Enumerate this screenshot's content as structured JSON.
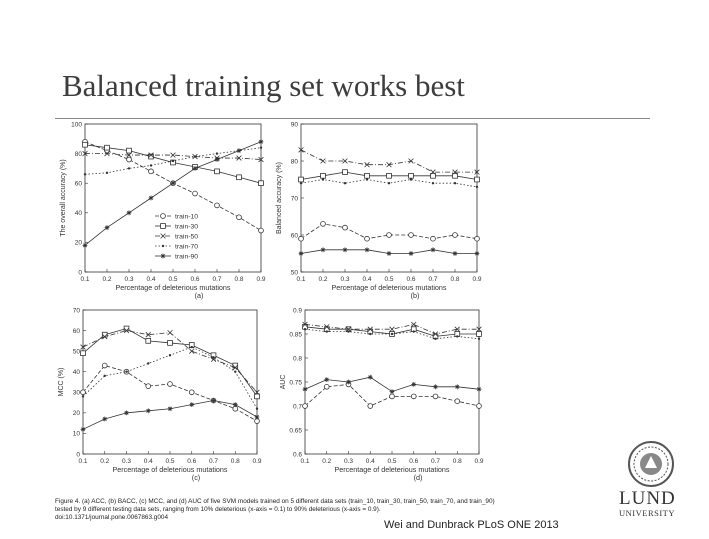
{
  "slide": {
    "title": "Balanced training set works best",
    "footer": "Wei and Dunbrack PLoS ONE 2013",
    "logo": {
      "word": "LUND",
      "sub": "UNIVERSITY"
    }
  },
  "caption": {
    "lead": "Figure 4. (a) ACC, (b) BACC, (c) MCC, and (d) AUC of five SVM models trained on 5 different data sets (train_10, train_30, train_50, train_70, and train_90) tested by 9 different testing data sets, ranging from 10% deleterious (x-axis = 0.1) to 90% deleterious (x-axis = 0.9).",
    "doi": "doi:10.1371/journal.pone.0067863.g004"
  },
  "colors": {
    "ink": "#333333",
    "grid": "#bbbbbb"
  },
  "chart_data": [
    {
      "type": "line",
      "panel_label": "(a)",
      "xlabel": "Percentage of deleterious mutations",
      "ylabel": "The overall accuracy (%)",
      "x": [
        0.1,
        0.2,
        0.3,
        0.4,
        0.5,
        0.6,
        0.7,
        0.8,
        0.9
      ],
      "x_ticks": [
        "0.1",
        "0.2",
        "0.3",
        "0.4",
        "0.5",
        "0.6",
        "0.7",
        "0.8",
        "0.9"
      ],
      "xlim": [
        0.1,
        0.9
      ],
      "ylim": [
        0,
        100
      ],
      "y_ticks": [
        0,
        20,
        40,
        60,
        80,
        100
      ],
      "grid": false,
      "legend": "bottom-right",
      "series": [
        {
          "name": "train-10",
          "marker": "circle",
          "values": [
            88,
            82,
            76,
            68,
            60,
            53,
            45,
            37,
            28
          ]
        },
        {
          "name": "train-30",
          "marker": "square",
          "values": [
            86,
            84,
            82,
            78,
            74,
            71,
            68,
            64,
            60
          ]
        },
        {
          "name": "train-50",
          "marker": "x",
          "values": [
            80,
            80,
            79,
            79,
            79,
            78,
            77,
            77,
            76
          ]
        },
        {
          "name": "train-70",
          "marker": "dot",
          "values": [
            66,
            67,
            70,
            72,
            75,
            78,
            80,
            82,
            84
          ]
        },
        {
          "name": "train-90",
          "marker": "star",
          "values": [
            18,
            30,
            40,
            50,
            60,
            70,
            76,
            82,
            88
          ]
        }
      ]
    },
    {
      "type": "line",
      "panel_label": "(b)",
      "xlabel": "Percentage of deleterious mutations",
      "ylabel": "Balanced accuracy (%)",
      "x": [
        0.1,
        0.2,
        0.3,
        0.4,
        0.5,
        0.6,
        0.7,
        0.8,
        0.9
      ],
      "x_ticks": [
        "0.1",
        "0.2",
        "0.3",
        "0.4",
        "0.5",
        "0.6",
        "0.7",
        "0.8",
        "0.9"
      ],
      "xlim": [
        0.1,
        0.9
      ],
      "ylim": [
        50,
        90
      ],
      "y_ticks": [
        50,
        60,
        70,
        80,
        90
      ],
      "grid": false,
      "series": [
        {
          "name": "train-10",
          "marker": "circle",
          "values": [
            59,
            63,
            62,
            59,
            60,
            60,
            59,
            60,
            59
          ]
        },
        {
          "name": "train-30",
          "marker": "square",
          "values": [
            75,
            76,
            77,
            76,
            76,
            76,
            76,
            76,
            75
          ]
        },
        {
          "name": "train-50",
          "marker": "x",
          "values": [
            83,
            80,
            80,
            79,
            79,
            80,
            77,
            77,
            77
          ]
        },
        {
          "name": "train-70",
          "marker": "dot",
          "values": [
            74,
            75,
            74,
            75,
            74,
            75,
            74,
            74,
            73
          ]
        },
        {
          "name": "train-90",
          "marker": "star",
          "values": [
            55,
            56,
            56,
            56,
            55,
            55,
            56,
            55,
            55
          ]
        }
      ]
    },
    {
      "type": "line",
      "panel_label": "(c)",
      "xlabel": "Percentage of deleterious mutations",
      "ylabel": "MCC (%)",
      "x": [
        0.1,
        0.2,
        0.3,
        0.4,
        0.5,
        0.6,
        0.7,
        0.8,
        0.9
      ],
      "x_ticks": [
        "0.1",
        "0.2",
        "0.3",
        "0.4",
        "0.5",
        "0.6",
        "0.7",
        "0.8",
        "0.9"
      ],
      "xlim": [
        0.1,
        0.9
      ],
      "ylim": [
        0,
        70
      ],
      "y_ticks": [
        0,
        10,
        20,
        30,
        40,
        50,
        60,
        70
      ],
      "grid": false,
      "series": [
        {
          "name": "train-10",
          "marker": "circle",
          "values": [
            30,
            43,
            40,
            33,
            34,
            30,
            26,
            22,
            16
          ]
        },
        {
          "name": "train-30",
          "marker": "square",
          "values": [
            49,
            58,
            61,
            55,
            54,
            53,
            48,
            43,
            28
          ]
        },
        {
          "name": "train-50",
          "marker": "x",
          "values": [
            52,
            57,
            60,
            58,
            59,
            50,
            46,
            42,
            30
          ]
        },
        {
          "name": "train-70",
          "marker": "dot",
          "values": [
            28,
            38,
            40,
            44,
            48,
            52,
            47,
            40,
            22
          ]
        },
        {
          "name": "train-90",
          "marker": "star",
          "values": [
            12,
            17,
            20,
            21,
            22,
            24,
            26,
            24,
            18
          ]
        }
      ]
    },
    {
      "type": "line",
      "panel_label": "(d)",
      "xlabel": "Percentage of deleterious mutations",
      "ylabel": "AUC",
      "x": [
        0.1,
        0.2,
        0.3,
        0.4,
        0.5,
        0.6,
        0.7,
        0.8,
        0.9
      ],
      "x_ticks": [
        "0.1",
        "0.2",
        "0.3",
        "0.4",
        "0.5",
        "0.6",
        "0.7",
        "0.8",
        "0.9"
      ],
      "xlim": [
        0.1,
        0.9
      ],
      "ylim": [
        0.6,
        0.9
      ],
      "y_ticks": [
        0.6,
        0.65,
        0.7,
        0.75,
        0.8,
        0.85,
        0.9
      ],
      "grid": false,
      "series": [
        {
          "name": "train-10",
          "marker": "circle",
          "values": [
            0.7,
            0.74,
            0.745,
            0.7,
            0.72,
            0.72,
            0.72,
            0.71,
            0.7
          ]
        },
        {
          "name": "train-30",
          "marker": "square",
          "values": [
            0.865,
            0.86,
            0.86,
            0.855,
            0.85,
            0.86,
            0.845,
            0.85,
            0.85
          ]
        },
        {
          "name": "train-50",
          "marker": "x",
          "values": [
            0.87,
            0.865,
            0.86,
            0.86,
            0.86,
            0.87,
            0.85,
            0.86,
            0.86
          ]
        },
        {
          "name": "train-70",
          "marker": "dot",
          "values": [
            0.86,
            0.855,
            0.855,
            0.85,
            0.85,
            0.855,
            0.84,
            0.845,
            0.84
          ]
        },
        {
          "name": "train-90",
          "marker": "star",
          "values": [
            0.735,
            0.755,
            0.75,
            0.76,
            0.73,
            0.745,
            0.74,
            0.74,
            0.735
          ]
        }
      ]
    }
  ]
}
